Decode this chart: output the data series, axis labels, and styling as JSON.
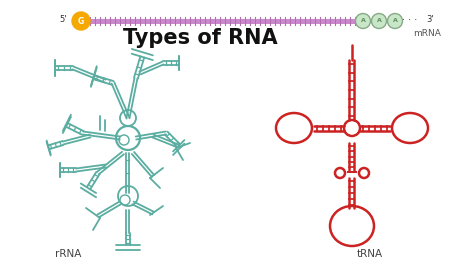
{
  "background_color": "#ffffff",
  "title": "Types of RNA",
  "title_fontsize": 15,
  "title_fontweight": "bold",
  "title_color": "#111111",
  "mrna_label": "mRNA",
  "rrna_label": "rRNA",
  "trna_label": "tRNA",
  "mrna_bar_color": "#cc88cc",
  "g_cap_color": "#f5a800",
  "a_circle_color": "#c8e6c8",
  "a_circle_border": "#88aa88",
  "rrna_color": "#5aada0",
  "trna_color": "#cc2222"
}
